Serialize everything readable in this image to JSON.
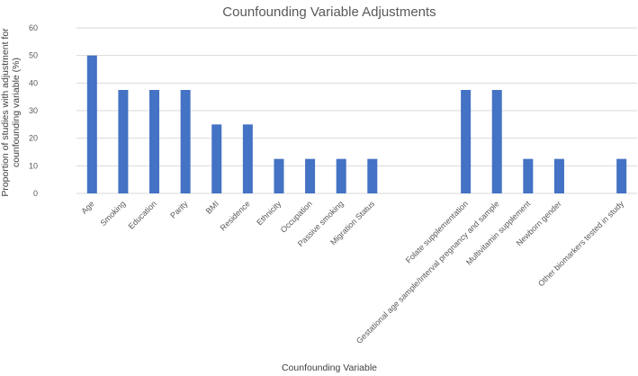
{
  "chart_data": {
    "type": "bar",
    "title": "Counfounding Variable Adjustments",
    "xlabel": "Counfounding Variable",
    "ylabel": "Proportion of studies with adjustment for counfounding variable (%)",
    "ylabel_lines": [
      "Proportion of studies with adjustment for",
      "counfounding variable (%)"
    ],
    "ylim": [
      0,
      60
    ],
    "yticks": [
      0,
      10,
      20,
      30,
      40,
      50,
      60
    ],
    "grid": true,
    "legend": "none",
    "bar_color": "#4472c4",
    "categories": [
      "Age",
      "Smoking",
      "Education",
      "Parity",
      "BMI",
      "Residence",
      "Ethnicity",
      "Occupation",
      "Passive smoking",
      "Migration Status",
      "",
      "",
      "Folate supplementation",
      "Gestational age sample/Interval pregnancy and sample",
      "Multivitamin supplement",
      "Newborn gender",
      "",
      "Other biomarkers tested in study"
    ],
    "values": [
      50,
      37.5,
      37.5,
      37.5,
      25,
      25,
      12.5,
      12.5,
      12.5,
      12.5,
      0,
      0,
      37.5,
      37.5,
      12.5,
      12.5,
      0,
      12.5
    ]
  }
}
